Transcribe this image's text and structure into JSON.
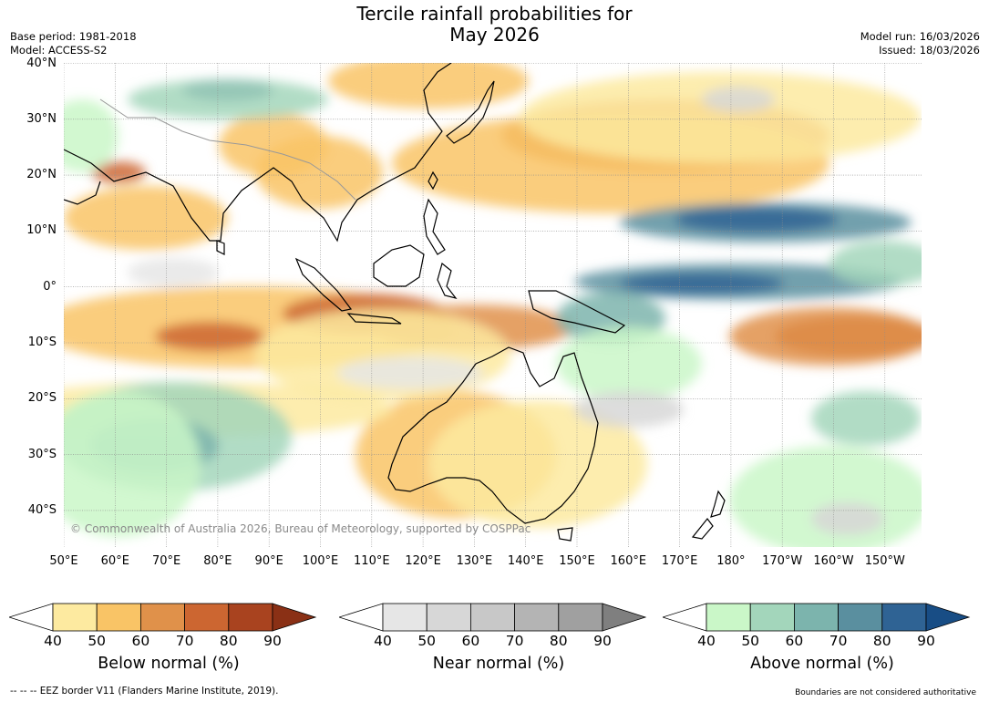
{
  "title_line1": "Tercile rainfall probabilities for",
  "title_line2": "May 2026",
  "meta": {
    "base_period": "Base period: 1981-2018",
    "model": "Model: ACCESS-S2",
    "model_run": "Model run: 16/03/2026",
    "issued": "Issued: 18/03/2026"
  },
  "copyright": "© Commonwealth of Australia 2026, Bureau of Meteorology, supported by COSPPac",
  "lat_labels": [
    "40°N",
    "30°N",
    "20°N",
    "10°N",
    "0°",
    "10°S",
    "20°S",
    "30°S",
    "40°S"
  ],
  "lon_labels": [
    "50°E",
    "60°E",
    "70°E",
    "80°E",
    "90°E",
    "100°E",
    "110°E",
    "120°E",
    "130°E",
    "140°E",
    "150°E",
    "160°E",
    "170°E",
    "180°",
    "170°W",
    "160°W",
    "150°W"
  ],
  "legends": [
    {
      "name": "below-normal",
      "title": "Below normal (%)",
      "ticks": [
        "40",
        "50",
        "60",
        "70",
        "80",
        "90"
      ],
      "colors": [
        "#fdeaa0",
        "#f9c466",
        "#e0914a",
        "#cc6631",
        "#a9431f",
        "#8a3015"
      ]
    },
    {
      "name": "near-normal",
      "title": "Near normal (%)",
      "ticks": [
        "40",
        "50",
        "60",
        "70",
        "80",
        "90"
      ],
      "colors": [
        "#e6e6e6",
        "#d7d7d7",
        "#c8c8c8",
        "#b4b4b4",
        "#a0a0a0",
        "#7f7f7f"
      ]
    },
    {
      "name": "above-normal",
      "title": "Above normal (%)",
      "ticks": [
        "40",
        "50",
        "60",
        "70",
        "80",
        "90"
      ],
      "colors": [
        "#caf7c8",
        "#a3d6bb",
        "#7cb4ad",
        "#5a8f9f",
        "#2f6394",
        "#184d85"
      ]
    }
  ],
  "footer_left": "--  --  -- EEZ border V11 (Flanders Marine Institute, 2019).",
  "footer_right": "Boundaries are not considered authoritative"
}
